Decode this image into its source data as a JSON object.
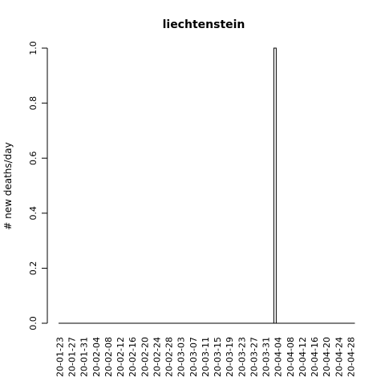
{
  "chart_data": {
    "type": "bar",
    "title": "liechtenstein",
    "xlabel": "",
    "ylabel": "# new deaths/day",
    "ylim": [
      0,
      1
    ],
    "yticks": [
      "0.0",
      "0.2",
      "0.4",
      "0.6",
      "0.8",
      "1.0"
    ],
    "x_tick_labels": [
      "20-01-23",
      "20-01-27",
      "20-01-31",
      "20-02-04",
      "20-02-08",
      "20-02-12",
      "20-02-16",
      "20-02-20",
      "20-02-24",
      "20-02-28",
      "20-03-03",
      "20-03-07",
      "20-03-11",
      "20-03-15",
      "20-03-19",
      "20-03-23",
      "20-03-27",
      "20-03-31",
      "20-04-04",
      "20-04-08",
      "20-04-12",
      "20-04-16",
      "20-04-20",
      "20-04-24",
      "20-04-28"
    ],
    "categories": [
      "20-01-23",
      "20-01-24",
      "20-01-25",
      "20-01-26",
      "20-01-27",
      "20-01-28",
      "20-01-29",
      "20-01-30",
      "20-01-31",
      "20-02-01",
      "20-02-02",
      "20-02-03",
      "20-02-04",
      "20-02-05",
      "20-02-06",
      "20-02-07",
      "20-02-08",
      "20-02-09",
      "20-02-10",
      "20-02-11",
      "20-02-12",
      "20-02-13",
      "20-02-14",
      "20-02-15",
      "20-02-16",
      "20-02-17",
      "20-02-18",
      "20-02-19",
      "20-02-20",
      "20-02-21",
      "20-02-22",
      "20-02-23",
      "20-02-24",
      "20-02-25",
      "20-02-26",
      "20-02-27",
      "20-02-28",
      "20-02-29",
      "20-03-01",
      "20-03-02",
      "20-03-03",
      "20-03-04",
      "20-03-05",
      "20-03-06",
      "20-03-07",
      "20-03-08",
      "20-03-09",
      "20-03-10",
      "20-03-11",
      "20-03-12",
      "20-03-13",
      "20-03-14",
      "20-03-15",
      "20-03-16",
      "20-03-17",
      "20-03-18",
      "20-03-19",
      "20-03-20",
      "20-03-21",
      "20-03-22",
      "20-03-23",
      "20-03-24",
      "20-03-25",
      "20-03-26",
      "20-03-27",
      "20-03-28",
      "20-03-29",
      "20-03-30",
      "20-03-31",
      "20-04-01",
      "20-04-02",
      "20-04-03",
      "20-04-04",
      "20-04-05",
      "20-04-06",
      "20-04-07",
      "20-04-08",
      "20-04-09",
      "20-04-10",
      "20-04-11",
      "20-04-12",
      "20-04-13",
      "20-04-14",
      "20-04-15",
      "20-04-16",
      "20-04-17",
      "20-04-18",
      "20-04-19",
      "20-04-20",
      "20-04-21",
      "20-04-22",
      "20-04-23",
      "20-04-24",
      "20-04-25",
      "20-04-26",
      "20-04-27",
      "20-04-28",
      "20-04-29"
    ],
    "values": [
      0,
      0,
      0,
      0,
      0,
      0,
      0,
      0,
      0,
      0,
      0,
      0,
      0,
      0,
      0,
      0,
      0,
      0,
      0,
      0,
      0,
      0,
      0,
      0,
      0,
      0,
      0,
      0,
      0,
      0,
      0,
      0,
      0,
      0,
      0,
      0,
      0,
      0,
      0,
      0,
      0,
      0,
      0,
      0,
      0,
      0,
      0,
      0,
      0,
      0,
      0,
      0,
      0,
      0,
      0,
      0,
      0,
      0,
      0,
      0,
      0,
      0,
      0,
      0,
      0,
      0,
      0,
      0,
      0,
      0,
      0,
      1,
      0,
      0,
      0,
      0,
      0,
      0,
      0,
      0,
      0,
      0,
      0,
      0,
      0,
      0,
      0,
      0,
      0,
      0,
      0,
      0,
      0,
      0,
      0,
      0,
      0,
      0
    ],
    "grid": false,
    "legend": "none"
  }
}
